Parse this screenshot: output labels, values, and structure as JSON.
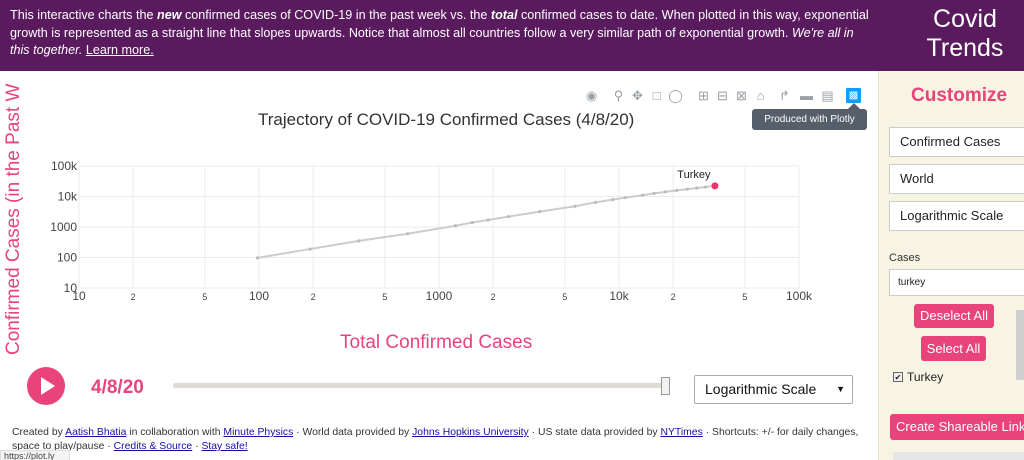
{
  "header": {
    "text_1": "This interactive charts the ",
    "text_new": "new",
    "text_2": " confirmed cases of COVID-19 in the past week vs. the ",
    "text_total": "total",
    "text_3": " confirmed cases to date. When plotted in this way, exponential growth is represented as a straight line that slopes upwards. Notice that almost all countries follow a very similar path of exponential growth. ",
    "text_together": "We're all in this together.",
    "learn_more": "Learn more.",
    "app_title": "Covid Trends"
  },
  "colors": {
    "header_bg": "#5a1a5e",
    "accent": "#e8437b",
    "panel_bg": "#f8f4e3",
    "line": "#cccccc",
    "marker_end": "#e8336b"
  },
  "modebar": {
    "icons": [
      "camera-icon",
      "zoom-icon",
      "pan-icon",
      "box-select-icon",
      "lasso-icon",
      "zoom-in-icon",
      "zoom-out-icon",
      "autoscale-icon",
      "home-icon",
      "spike-lines-icon",
      "hover-closest-icon",
      "hover-compare-icon",
      "plotly-logo-icon"
    ],
    "tooltip": "Produced with Plotly"
  },
  "chart_data": {
    "type": "line",
    "title": "Trajectory of COVID-19 Confirmed Cases (4/8/20)",
    "xlabel": "Total Confirmed Cases",
    "ylabel": "Confirmed Cases (in the Past W",
    "x_scale": "log",
    "y_scale": "log",
    "xlim": [
      10,
      100000
    ],
    "ylim": [
      10,
      100000
    ],
    "x_tick_labels": [
      "10",
      "2",
      "5",
      "100",
      "2",
      "5",
      "1000",
      "2",
      "5",
      "10k",
      "2",
      "5",
      "100k"
    ],
    "y_tick_labels": [
      "10",
      "100",
      "1000",
      "10k",
      "100k"
    ],
    "grid": true,
    "series": [
      {
        "name": "Turkey",
        "x": [
          98,
          192,
          359,
          670,
          1236,
          1529,
          1872,
          2433,
          3629,
          5698,
          7402,
          9217,
          10827,
          13531,
          15679,
          18135,
          20921,
          23934,
          27069,
          30217,
          34109
        ],
        "y": [
          97,
          189,
          350,
          600,
          1100,
          1400,
          1700,
          2200,
          3200,
          4800,
          6400,
          7900,
          9200,
          11000,
          12700,
          14200,
          15900,
          17400,
          19000,
          20500,
          22300
        ]
      }
    ],
    "annotations": [
      "Turkey"
    ]
  },
  "xaxis_title": "Total Confirmed Cases",
  "yaxis_title": "Confirmed Cases (in the Past W",
  "player": {
    "date": "4/8/20",
    "progress": 1.0,
    "scale_select": "Logarithmic Scale",
    "select_arrow": "▼"
  },
  "panel": {
    "title": "Customize",
    "select_metric": "Confirmed Cases",
    "select_region": "World",
    "select_scale": "Logarithmic Scale",
    "cut_label": "Cases",
    "search_value": "turkey",
    "deselect_all": "Deselect All",
    "select_all": "Select All",
    "checkbox_label": "Turkey",
    "checkbox_checked": true,
    "share_button": "Create Shareable Link"
  },
  "footer": {
    "created_by": "Created by ",
    "author": "Aatish Bhatia",
    "collab": " in collaboration with ",
    "minute_physics": "Minute Physics",
    "world_data": " · World data provided by ",
    "jhu": "Johns Hopkins University",
    "us_data": " · US state data provided by ",
    "nytimes": "NYTimes",
    "shortcuts": " · Shortcuts: +/- for daily changes, space to play/pause · ",
    "credits": "Credits & Source",
    "sep": " · ",
    "stay_safe": "Stay safe!"
  },
  "status_bar": "https://plot.ly"
}
